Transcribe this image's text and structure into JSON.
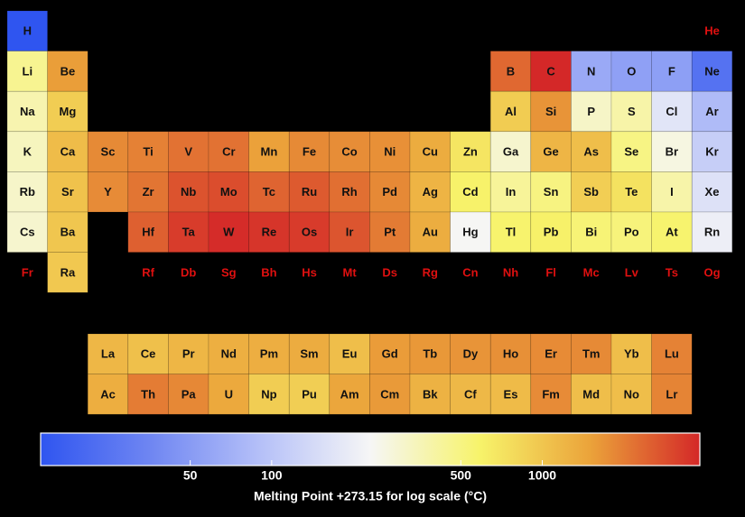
{
  "chart_data": {
    "type": "periodic-heatmap",
    "rows": [
      [
        {
          "symbol": "H",
          "value": 14.01
        },
        null,
        null,
        null,
        null,
        null,
        null,
        null,
        null,
        null,
        null,
        null,
        null,
        null,
        null,
        null,
        null,
        {
          "symbol": "He",
          "value": null
        }
      ],
      [
        {
          "symbol": "Li",
          "value": 453.65
        },
        {
          "symbol": "Be",
          "value": 1560
        },
        null,
        null,
        null,
        null,
        null,
        null,
        null,
        null,
        null,
        null,
        {
          "symbol": "B",
          "value": 2349
        },
        {
          "symbol": "C",
          "value": 3823
        },
        {
          "symbol": "N",
          "value": 63.15
        },
        {
          "symbol": "O",
          "value": 54.36
        },
        {
          "symbol": "F",
          "value": 53.53
        },
        {
          "symbol": "Ne",
          "value": 24.56
        }
      ],
      [
        {
          "symbol": "Na",
          "value": 370.87
        },
        {
          "symbol": "Mg",
          "value": 923
        },
        null,
        null,
        null,
        null,
        null,
        null,
        null,
        null,
        null,
        null,
        {
          "symbol": "Al",
          "value": 933.47
        },
        {
          "symbol": "Si",
          "value": 1687
        },
        {
          "symbol": "P",
          "value": 317.3
        },
        {
          "symbol": "S",
          "value": 388.36
        },
        {
          "symbol": "Cl",
          "value": 171.6
        },
        {
          "symbol": "Ar",
          "value": 83.8
        }
      ],
      [
        {
          "symbol": "K",
          "value": 336.53
        },
        {
          "symbol": "Ca",
          "value": 1115
        },
        {
          "symbol": "Sc",
          "value": 1814
        },
        {
          "symbol": "Ti",
          "value": 1941
        },
        {
          "symbol": "V",
          "value": 2183
        },
        {
          "symbol": "Cr",
          "value": 2180
        },
        {
          "symbol": "Mn",
          "value": 1519
        },
        {
          "symbol": "Fe",
          "value": 1811
        },
        {
          "symbol": "Co",
          "value": 1768
        },
        {
          "symbol": "Ni",
          "value": 1728
        },
        {
          "symbol": "Cu",
          "value": 1357.77
        },
        {
          "symbol": "Zn",
          "value": 692.68
        },
        {
          "symbol": "Ga",
          "value": 302.91
        },
        {
          "symbol": "Ge",
          "value": 1211.4
        },
        {
          "symbol": "As",
          "value": 1090
        },
        {
          "symbol": "Se",
          "value": 494
        },
        {
          "symbol": "Br",
          "value": 265.8
        },
        {
          "symbol": "Kr",
          "value": 115.79
        }
      ],
      [
        {
          "symbol": "Rb",
          "value": 312.46
        },
        {
          "symbol": "Sr",
          "value": 1050
        },
        {
          "symbol": "Y",
          "value": 1799
        },
        {
          "symbol": "Zr",
          "value": 2128
        },
        {
          "symbol": "Nb",
          "value": 2750
        },
        {
          "symbol": "Mo",
          "value": 2896
        },
        {
          "symbol": "Tc",
          "value": 2430
        },
        {
          "symbol": "Ru",
          "value": 2607
        },
        {
          "symbol": "Rh",
          "value": 2237
        },
        {
          "symbol": "Pd",
          "value": 1828.05
        },
        {
          "symbol": "Ag",
          "value": 1234.93
        },
        {
          "symbol": "Cd",
          "value": 594.22
        },
        {
          "symbol": "In",
          "value": 429.75
        },
        {
          "symbol": "Sn",
          "value": 505.08
        },
        {
          "symbol": "Sb",
          "value": 903.78
        },
        {
          "symbol": "Te",
          "value": 722.66
        },
        {
          "symbol": "I",
          "value": 386.85
        },
        {
          "symbol": "Xe",
          "value": 161.4
        }
      ],
      [
        {
          "symbol": "Cs",
          "value": 301.59
        },
        {
          "symbol": "Ba",
          "value": 1000
        },
        null,
        {
          "symbol": "Hf",
          "value": 2506
        },
        {
          "symbol": "Ta",
          "value": 3290
        },
        {
          "symbol": "W",
          "value": 3695
        },
        {
          "symbol": "Re",
          "value": 3459
        },
        {
          "symbol": "Os",
          "value": 3306
        },
        {
          "symbol": "Ir",
          "value": 2719
        },
        {
          "symbol": "Pt",
          "value": 2041.4
        },
        {
          "symbol": "Au",
          "value": 1337.33
        },
        {
          "symbol": "Hg",
          "value": 234.32
        },
        {
          "symbol": "Tl",
          "value": 577
        },
        {
          "symbol": "Pb",
          "value": 600.61
        },
        {
          "symbol": "Bi",
          "value": 544.7
        },
        {
          "symbol": "Po",
          "value": 527
        },
        {
          "symbol": "At",
          "value": 575
        },
        {
          "symbol": "Rn",
          "value": 202
        }
      ],
      [
        {
          "symbol": "Fr",
          "value": null
        },
        {
          "symbol": "Ra",
          "value": 973
        },
        null,
        {
          "symbol": "Rf",
          "value": null
        },
        {
          "symbol": "Db",
          "value": null
        },
        {
          "symbol": "Sg",
          "value": null
        },
        {
          "symbol": "Bh",
          "value": null
        },
        {
          "symbol": "Hs",
          "value": null
        },
        {
          "symbol": "Mt",
          "value": null
        },
        {
          "symbol": "Ds",
          "value": null
        },
        {
          "symbol": "Rg",
          "value": null
        },
        {
          "symbol": "Cn",
          "value": null
        },
        {
          "symbol": "Nh",
          "value": null
        },
        {
          "symbol": "Fl",
          "value": null
        },
        {
          "symbol": "Mc",
          "value": null
        },
        {
          "symbol": "Lv",
          "value": null
        },
        {
          "symbol": "Ts",
          "value": null
        },
        {
          "symbol": "Og",
          "value": null
        }
      ]
    ],
    "f_block_rows": [
      [
        {
          "symbol": "La",
          "value": 1193
        },
        {
          "symbol": "Ce",
          "value": 1068
        },
        {
          "symbol": "Pr",
          "value": 1208
        },
        {
          "symbol": "Nd",
          "value": 1297
        },
        {
          "symbol": "Pm",
          "value": 1315
        },
        {
          "symbol": "Sm",
          "value": 1345
        },
        {
          "symbol": "Eu",
          "value": 1099
        },
        {
          "symbol": "Gd",
          "value": 1585
        },
        {
          "symbol": "Tb",
          "value": 1629
        },
        {
          "symbol": "Dy",
          "value": 1680
        },
        {
          "symbol": "Ho",
          "value": 1734
        },
        {
          "symbol": "Er",
          "value": 1802
        },
        {
          "symbol": "Tm",
          "value": 1818
        },
        {
          "symbol": "Yb",
          "value": 1097
        },
        {
          "symbol": "Lu",
          "value": 1925
        }
      ],
      [
        {
          "symbol": "Ac",
          "value": 1323
        },
        {
          "symbol": "Th",
          "value": 2023
        },
        {
          "symbol": "Pa",
          "value": 1841
        },
        {
          "symbol": "U",
          "value": 1405.3
        },
        {
          "symbol": "Np",
          "value": 917
        },
        {
          "symbol": "Pu",
          "value": 912.5
        },
        {
          "symbol": "Am",
          "value": 1449
        },
        {
          "symbol": "Cm",
          "value": 1613
        },
        {
          "symbol": "Bk",
          "value": 1259
        },
        {
          "symbol": "Cf",
          "value": 1173
        },
        {
          "symbol": "Es",
          "value": 1133
        },
        {
          "symbol": "Fm",
          "value": 1800
        },
        {
          "symbol": "Md",
          "value": 1100
        },
        {
          "symbol": "No",
          "value": 1100
        },
        {
          "symbol": "Lr",
          "value": 1900
        }
      ]
    ],
    "colorbar": {
      "label": "Melting Point +273.15 for log scale (°C)",
      "lim": [
        14,
        3823
      ],
      "ticks": [
        50,
        100,
        500,
        1000
      ],
      "log": true,
      "colorscale": [
        "#2f55f0",
        "#6f86f2",
        "#b5c0f8",
        "#f6f6f6",
        "#f7f36a",
        "#eba33a",
        "#d42828"
      ]
    },
    "missing_color": "#e01010"
  }
}
